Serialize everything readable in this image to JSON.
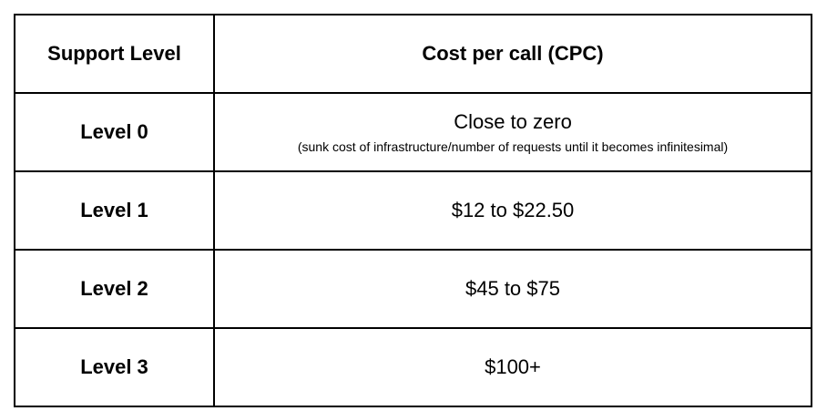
{
  "table": {
    "headers": [
      "Support Level",
      "Cost per call (CPC)"
    ],
    "rows": [
      {
        "level": "Level 0",
        "cost": "Close to zero",
        "note": "(sunk cost of infrastructure/number of requests until it becomes infinitesimal)"
      },
      {
        "level": "Level 1",
        "cost": "$12 to $22.50"
      },
      {
        "level": "Level 2",
        "cost": "$45 to $75"
      },
      {
        "level": "Level 3",
        "cost": "$100+"
      }
    ]
  }
}
